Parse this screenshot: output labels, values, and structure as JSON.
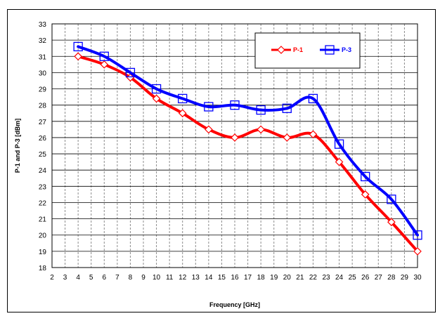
{
  "chart_data": {
    "type": "line",
    "xlabel": "Frequency [GHz]",
    "ylabel": "P-1 and P-3 [dBm]",
    "xlim": [
      2,
      30
    ],
    "ylim": [
      18,
      33
    ],
    "x_ticks": [
      "2",
      "3",
      "4",
      "5",
      "6",
      "7",
      "8",
      "9",
      "10",
      "11",
      "12",
      "13",
      "14",
      "15",
      "16",
      "17",
      "18",
      "19",
      "20",
      "21",
      "22",
      "23",
      "24",
      "25",
      "26",
      "27",
      "28",
      "29",
      "30"
    ],
    "y_ticks": [
      "18",
      "19",
      "20",
      "21",
      "22",
      "23",
      "24",
      "25",
      "26",
      "27",
      "28",
      "29",
      "30",
      "31",
      "32",
      "33"
    ],
    "grid": "on",
    "legend_position": "top-right",
    "series": [
      {
        "name": "P-1",
        "color": "#ff0000",
        "marker": "diamond",
        "x": [
          4,
          6,
          8,
          10,
          12,
          14,
          16,
          18,
          20,
          22,
          24,
          26,
          28,
          30
        ],
        "values": [
          31.0,
          30.5,
          29.7,
          28.4,
          27.5,
          26.5,
          26.0,
          26.5,
          26.0,
          26.2,
          24.5,
          22.5,
          20.8,
          19.0
        ]
      },
      {
        "name": "P-3",
        "color": "#0000ff",
        "marker": "square",
        "x": [
          4,
          6,
          8,
          10,
          12,
          14,
          16,
          18,
          20,
          22,
          24,
          26,
          28,
          30
        ],
        "values": [
          31.6,
          31.0,
          30.0,
          29.0,
          28.4,
          27.9,
          28.0,
          27.7,
          27.8,
          28.4,
          25.6,
          23.6,
          22.2,
          20.0
        ]
      }
    ]
  }
}
